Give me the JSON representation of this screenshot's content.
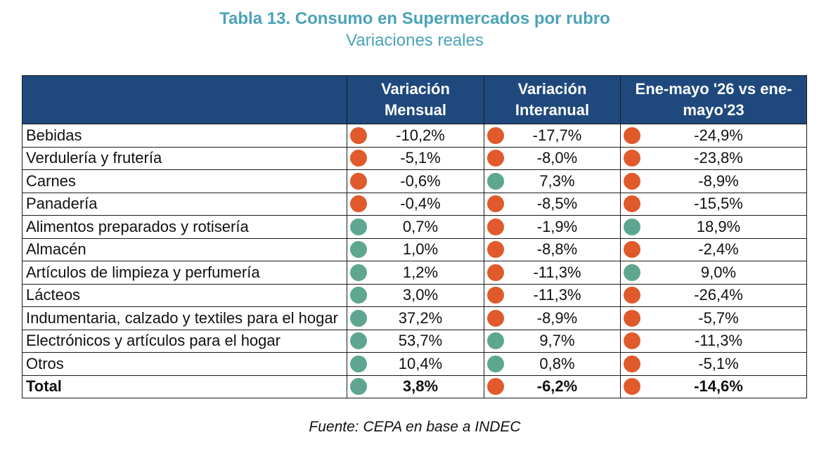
{
  "title": "Tabla 13. Consumo en Supermercados por rubro",
  "subtitle": "Variaciones reales",
  "source": "Fuente: CEPA en base a INDEC",
  "colors": {
    "header_bg": "#1F497D",
    "title": "#4BA3B8",
    "negative": "#E05A2B",
    "positive": "#5FA690"
  },
  "chart_data": {
    "type": "table",
    "title": "Tabla 13. Consumo en Supermercados por rubro",
    "subtitle": "Variaciones reales",
    "columns": [
      "",
      "Variación Mensual",
      "Variación Interanual",
      "Ene-mayo '26 vs ene-mayo'23"
    ],
    "rows": [
      {
        "label": "Bebidas",
        "cells": [
          "-10,2%",
          "-17,7%",
          "-24,9%"
        ],
        "values": [
          -10.2,
          -17.7,
          -24.9
        ]
      },
      {
        "label": "Verdulería y frutería",
        "cells": [
          "-5,1%",
          "-8,0%",
          "-23,8%"
        ],
        "values": [
          -5.1,
          -8.0,
          -23.8
        ]
      },
      {
        "label": "Carnes",
        "cells": [
          "-0,6%",
          "7,3%",
          "-8,9%"
        ],
        "values": [
          -0.6,
          7.3,
          -8.9
        ]
      },
      {
        "label": "Panadería",
        "cells": [
          "-0,4%",
          "-8,5%",
          "-15,5%"
        ],
        "values": [
          -0.4,
          -8.5,
          -15.5
        ]
      },
      {
        "label": "Alimentos preparados y rotisería",
        "cells": [
          "0,7%",
          "-1,9%",
          "18,9%"
        ],
        "values": [
          0.7,
          -1.9,
          18.9
        ]
      },
      {
        "label": "Almacén",
        "cells": [
          "1,0%",
          "-8,8%",
          "-2,4%"
        ],
        "values": [
          1.0,
          -8.8,
          -2.4
        ]
      },
      {
        "label": "Artículos de limpieza y perfumería",
        "cells": [
          "1,2%",
          "-11,3%",
          "9,0%"
        ],
        "values": [
          1.2,
          -11.3,
          9.0
        ]
      },
      {
        "label": "Lácteos",
        "cells": [
          "3,0%",
          "-11,3%",
          "-26,4%"
        ],
        "values": [
          3.0,
          -11.3,
          -26.4
        ]
      },
      {
        "label": "Indumentaria, calzado y textiles para el hogar",
        "cells": [
          "37,2%",
          "-8,9%",
          "-5,7%"
        ],
        "values": [
          37.2,
          -8.9,
          -5.7
        ]
      },
      {
        "label": "Electrónicos y artículos para el hogar",
        "cells": [
          "53,7%",
          "9,7%",
          "-11,3%"
        ],
        "values": [
          53.7,
          9.7,
          -11.3
        ]
      },
      {
        "label": "Otros",
        "cells": [
          "10,4%",
          "0,8%",
          "-5,1%"
        ],
        "values": [
          10.4,
          0.8,
          -5.1
        ]
      }
    ],
    "total": {
      "label": "Total",
      "cells": [
        "3,8%",
        "-6,2%",
        "-14,6%"
      ],
      "values": [
        3.8,
        -6.2,
        -14.6
      ]
    }
  }
}
